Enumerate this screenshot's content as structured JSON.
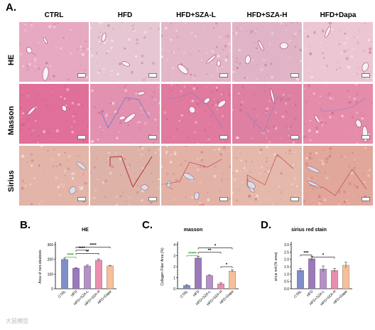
{
  "figure": {
    "panel_a_letter": "A.",
    "columns": [
      "CTRL",
      "HFD",
      "HFD+SZA-L",
      "HFD+SZA-H",
      "HFD+Dapa"
    ],
    "rows": [
      "HE",
      "Masson",
      "Sirius"
    ],
    "tile_colors": {
      "HE": [
        "#e7a9c2",
        "#e6c6d2",
        "#e3b7c8",
        "#e0b4c6",
        "#ecc6d3"
      ],
      "Masson": [
        "#e06f99",
        "#e391b0",
        "#e07a9f",
        "#de80a2",
        "#e48ca9"
      ],
      "Sirius": [
        "#e2b5a8",
        "#ddb3a8",
        "#e3b2a6",
        "#e4b8aa",
        "#e1a79b"
      ]
    },
    "watermark": "大鼠模型"
  },
  "chart_data": [
    {
      "panel": "B.",
      "type": "bar",
      "title": "HE",
      "ylabel": "Area of non-steatosis",
      "xlabel": "",
      "categories": [
        "CTRL",
        "HFD",
        "HFD+SZA-L",
        "HFD+SZA-H",
        "HFD+Dapa"
      ],
      "values": [
        200,
        140,
        155,
        195,
        155
      ],
      "errors": [
        8,
        4,
        6,
        8,
        4
      ],
      "ylim": [
        0,
        300
      ],
      "yticks": [
        "0",
        "100",
        "200",
        "300"
      ],
      "colors": [
        "#7f8fc9",
        "#9b79bb",
        "#b591c7",
        "#e88faf",
        "#f7c09a"
      ],
      "significance": [
        "****",
        "**",
        "****",
        "****"
      ]
    },
    {
      "panel": "C.",
      "type": "bar",
      "title": "masson",
      "ylabel": "Collagen Fiber Area (%)",
      "xlabel": "",
      "categories": [
        "CTRL",
        "HFD",
        "HFD+SZA-L",
        "HFD+SZA-H",
        "HFD+Dapa"
      ],
      "values": [
        0.3,
        2.8,
        1.2,
        0.45,
        1.6
      ],
      "errors": [
        0.08,
        0.15,
        0.05,
        0.1,
        0.12
      ],
      "ylim": [
        0,
        4
      ],
      "yticks": [
        "0",
        "1",
        "2",
        "3",
        "4"
      ],
      "colors": [
        "#7f8fc9",
        "#9b79bb",
        "#b591c7",
        "#e88faf",
        "#f7c09a"
      ],
      "significance": [
        "*****",
        "**",
        "*",
        "*"
      ]
    },
    {
      "panel": "D.",
      "type": "bar",
      "title": "sirius red stain",
      "ylabel": "sirius red (% area)",
      "xlabel": "",
      "categories": [
        "CTRL",
        "HFD",
        "HFD+SZA-L",
        "HFD+SZA-H",
        "HFD+Dapa"
      ],
      "values": [
        1.25,
        2.05,
        1.35,
        1.25,
        1.6
      ],
      "errors": [
        0.12,
        0.15,
        0.2,
        0.12,
        0.2
      ],
      "ylim": [
        0,
        3
      ],
      "yticks": [
        "0.0",
        "0.5",
        "1.0",
        "1.5",
        "2.0",
        "2.5",
        "3.0"
      ],
      "colors": [
        "#7f8fc9",
        "#9b79bb",
        "#b591c7",
        "#e88faf",
        "#f7c09a"
      ],
      "significance": [
        "***",
        "*"
      ]
    }
  ]
}
